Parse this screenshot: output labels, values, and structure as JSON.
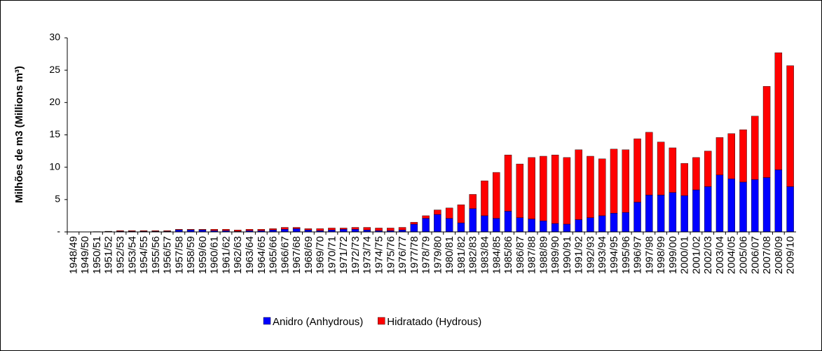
{
  "chart_data": {
    "type": "stacked_bar",
    "y_label": "Milhões de m3 (Millions m³)",
    "categories": [
      "1948/49",
      "1949/50",
      "1950/51",
      "1951/52",
      "1952/53",
      "1953/54",
      "1954/55",
      "1955/56",
      "1956/57",
      "1957/58",
      "1958/59",
      "1959/60",
      "1960/61",
      "1961/62",
      "1962/63",
      "1963/64",
      "1964/65",
      "1965/66",
      "1966/67",
      "1967/68",
      "1968/69",
      "1969/70",
      "1970/71",
      "1971/72",
      "1972/73",
      "1973/74",
      "1974/75",
      "1975/76",
      "1976/77",
      "1977/78",
      "1978/79",
      "1979/80",
      "1980/81",
      "1981/82",
      "1982/83",
      "1983/84",
      "1984/85",
      "1985/86",
      "1986/87",
      "1987/88",
      "1988/89",
      "1989/90",
      "1990/91",
      "1991/92",
      "1992/93",
      "1993/94",
      "1994/95",
      "1995/96",
      "1996/97",
      "1997/98",
      "1998/99",
      "1999/00",
      "2000/01",
      "2001/02",
      "2002/03",
      "2003/04",
      "2004/05",
      "2005/06",
      "2006/07",
      "2007/08",
      "2008/09",
      "2009/10"
    ],
    "series": [
      {
        "name": "Anidro (Anhydrous)",
        "color": "#0000ff",
        "values": [
          0,
          0,
          0,
          0.05,
          0.1,
          0.1,
          0.1,
          0.1,
          0.1,
          0.3,
          0.3,
          0.3,
          0.2,
          0.2,
          0.1,
          0.2,
          0.2,
          0.3,
          0.4,
          0.5,
          0.3,
          0.2,
          0.3,
          0.4,
          0.4,
          0.3,
          0.2,
          0.2,
          0.3,
          1.2,
          2.1,
          2.7,
          2.1,
          1.4,
          3.6,
          2.5,
          2.1,
          3.2,
          2.2,
          2.0,
          1.7,
          1.3,
          1.2,
          1.9,
          2.2,
          2.5,
          2.9,
          3.0,
          4.6,
          5.7,
          5.7,
          6.1,
          5.6,
          6.5,
          7.0,
          8.8,
          8.2,
          7.7,
          8.1,
          8.4,
          9.6,
          7.0
        ]
      },
      {
        "name": "Hidratado (Hydrous)",
        "color": "#ff0000",
        "values": [
          0,
          0,
          0.05,
          0.05,
          0.1,
          0.1,
          0.1,
          0.1,
          0.1,
          0.1,
          0.1,
          0.1,
          0.2,
          0.2,
          0.2,
          0.2,
          0.2,
          0.2,
          0.3,
          0.2,
          0.2,
          0.3,
          0.3,
          0.2,
          0.3,
          0.4,
          0.4,
          0.4,
          0.4,
          0.3,
          0.4,
          0.7,
          1.6,
          2.8,
          2.2,
          5.4,
          7.1,
          8.7,
          8.3,
          9.5,
          10.0,
          10.6,
          10.3,
          10.8,
          9.5,
          8.8,
          9.9,
          9.7,
          9.8,
          9.7,
          8.2,
          6.9,
          5.0,
          5.0,
          5.5,
          5.8,
          7.0,
          8.1,
          9.8,
          14.1,
          18.1,
          18.7
        ]
      }
    ],
    "ylim": [
      0,
      30
    ],
    "yticks": [
      {
        "value": 0,
        "label": "-"
      },
      5,
      10,
      15,
      20,
      25,
      30
    ],
    "grid": false,
    "legend": "bottom"
  }
}
